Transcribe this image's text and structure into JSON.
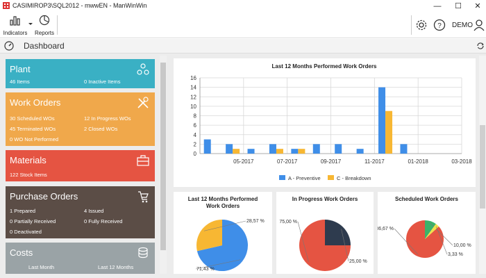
{
  "window": {
    "title": "CASIMIROP3\\SQL2012 - mwwEN - ManWinWin",
    "min": "—",
    "max": "☐",
    "close": "✕"
  },
  "toolbar": {
    "indicators_label": "Indicators",
    "reports_label": "Reports",
    "user_label": "DEMO"
  },
  "dashboard": {
    "title": "Dashboard"
  },
  "cards": {
    "plant": {
      "title": "Plant",
      "items": "46 Items",
      "inactive": "0 Inactive Items",
      "color": "#3ab0c4"
    },
    "work_orders": {
      "title": "Work Orders",
      "scheduled": "30 Scheduled WOs",
      "in_progress": "12 In Progress WOs",
      "terminated": "45 Terminated WOs",
      "closed": "2 Closed WOs",
      "not_performed": "0 WO Not Performed",
      "color": "#f0a84b"
    },
    "materials": {
      "title": "Materials",
      "stock": "122 Stock Items",
      "color": "#e55442"
    },
    "purchase_orders": {
      "title": "Purchase Orders",
      "prepared": "1 Prepared",
      "issued": "4 Issued",
      "partially": "0 Partially Received",
      "fully": "0 Fully Received",
      "deactivated": "0 Deactivated",
      "color": "#5b4d46"
    },
    "costs": {
      "title": "Costs",
      "last_month": "Last Month",
      "last_12": "Last 12 Months",
      "color": "#9aa3a6"
    }
  },
  "chart_data": [
    {
      "type": "bar",
      "title": "Last 12 Months Performed Work Orders",
      "x_tick_labels": [
        "05-2017",
        "07-2017",
        "09-2017",
        "11-2017",
        "01-2018",
        "03-2018"
      ],
      "series": [
        {
          "name": "A - Preventive",
          "color": "#3f8ee8",
          "values": [
            3,
            2,
            1,
            2,
            1,
            2,
            2,
            1,
            14,
            2,
            0,
            0
          ]
        },
        {
          "name": "C - Breakdown",
          "color": "#f7b733",
          "values": [
            0,
            1,
            0,
            1,
            1,
            0,
            0,
            0,
            9,
            0,
            0,
            0
          ]
        }
      ],
      "ylim": [
        0,
        16
      ],
      "yticks": [
        "0",
        "2",
        "4",
        "6",
        "8",
        "10",
        "12",
        "14",
        "16"
      ],
      "grid": true,
      "legend": "bottom"
    },
    {
      "type": "pie",
      "title": "Last 12 Months Performed Work Orders",
      "slices": [
        {
          "label": "71,43 %",
          "value": 71.43,
          "color": "#3f8ee8"
        },
        {
          "label": "28,57 %",
          "value": 28.57,
          "color": "#f7b733"
        }
      ]
    },
    {
      "type": "pie",
      "title": "In Progress Work Orders",
      "slices": [
        {
          "label": "75,00 %",
          "value": 75.0,
          "color": "#e55442"
        },
        {
          "label": "25,00 %",
          "value": 25.0,
          "color": "#2e3b4e"
        }
      ]
    },
    {
      "type": "pie",
      "title": "Scheduled Work Orders",
      "slices": [
        {
          "label": "86,67 %",
          "value": 86.67,
          "color": "#e55442"
        },
        {
          "label": "10,00 %",
          "value": 10.0,
          "color": "#3bb36a"
        },
        {
          "label": "3,33 %",
          "value": 3.33,
          "color": "#f1e04a"
        }
      ]
    }
  ]
}
